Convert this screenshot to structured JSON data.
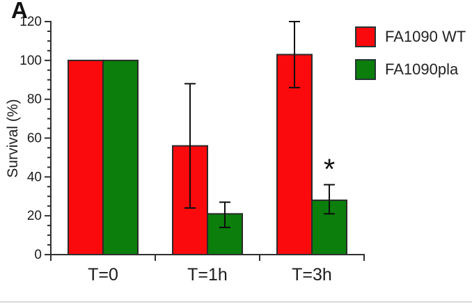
{
  "panel_label": "A",
  "colors": {
    "wt_red": "#fa0a0c",
    "pla_green": "#0b7e0c",
    "bar_outline": "#2a2a2a",
    "axis": "#2f2f2f",
    "error_bar": "#0d0d0d",
    "text": "#1c1c1c",
    "figure_rule": "#d9d9d9"
  },
  "chart_data": {
    "type": "bar",
    "title": "",
    "categories": [
      "T=0",
      "T=1h",
      "T=3h"
    ],
    "series": [
      {
        "name": "FA1090 WT",
        "color": "#fa0a0c",
        "values": [
          100,
          56,
          103
        ],
        "error_ranges": [
          null,
          [
            24,
            88
          ],
          [
            86,
            120
          ]
        ]
      },
      {
        "name": "FA1090pla",
        "color": "#0b7e0c",
        "values": [
          100,
          21,
          28
        ],
        "error_ranges": [
          null,
          [
            14,
            27
          ],
          [
            21,
            36
          ]
        ]
      }
    ],
    "annotations": [
      {
        "text": "*",
        "category": "T=3h",
        "series": "FA1090pla",
        "y": 46
      }
    ],
    "ylabel": "Survival (%)",
    "xlabel": "",
    "ylim": [
      0,
      120
    ],
    "ytick_major": 20,
    "ytick_minor": 5,
    "grid": false,
    "legend_position": "top-right"
  },
  "legend": {
    "items": [
      {
        "label": "FA1090 WT",
        "color": "#fa0a0c"
      },
      {
        "label": "FA1090pla",
        "color": "#0b7e0c"
      }
    ]
  }
}
